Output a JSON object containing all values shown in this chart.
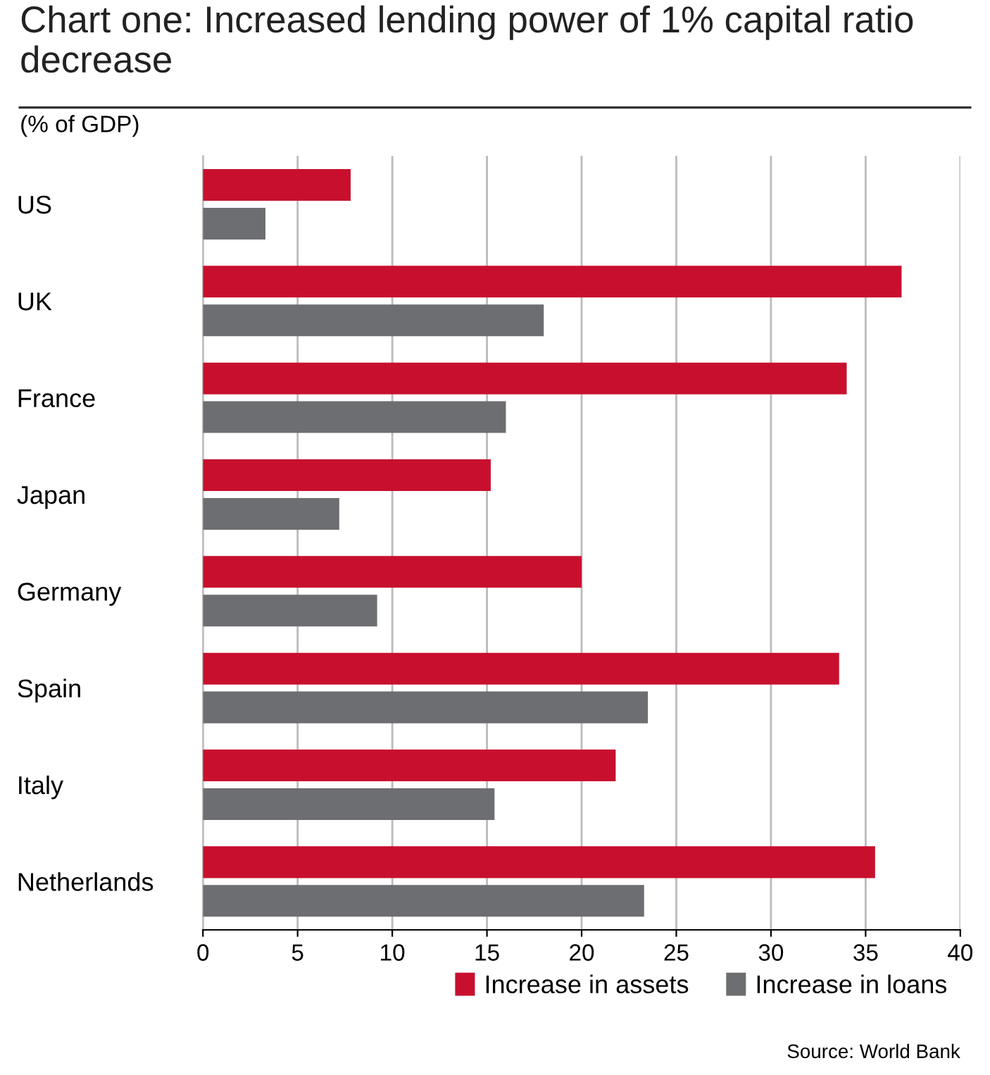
{
  "chart_data": {
    "type": "bar",
    "orientation": "horizontal",
    "title": "Chart one: Increased lending power of 1% capital ratio decrease",
    "subtitle": "(% of GDP)",
    "categories": [
      "US",
      "UK",
      "France",
      "Japan",
      "Germany",
      "Spain",
      "Italy",
      "Netherlands"
    ],
    "series": [
      {
        "name": "Increase in assets",
        "color": "#c8102e",
        "values": [
          7.8,
          36.9,
          34.0,
          15.2,
          20.0,
          33.6,
          21.8,
          35.5
        ]
      },
      {
        "name": "Increase in loans",
        "color": "#6d6e71",
        "values": [
          3.3,
          18.0,
          16.0,
          7.2,
          9.2,
          23.5,
          15.4,
          23.3
        ]
      }
    ],
    "xlim": [
      0,
      40
    ],
    "xticks": [
      0,
      5,
      10,
      15,
      20,
      25,
      30,
      35,
      40
    ],
    "grid": "x",
    "legend": "bottom right",
    "annotations": [
      "Source: World Bank"
    ]
  }
}
